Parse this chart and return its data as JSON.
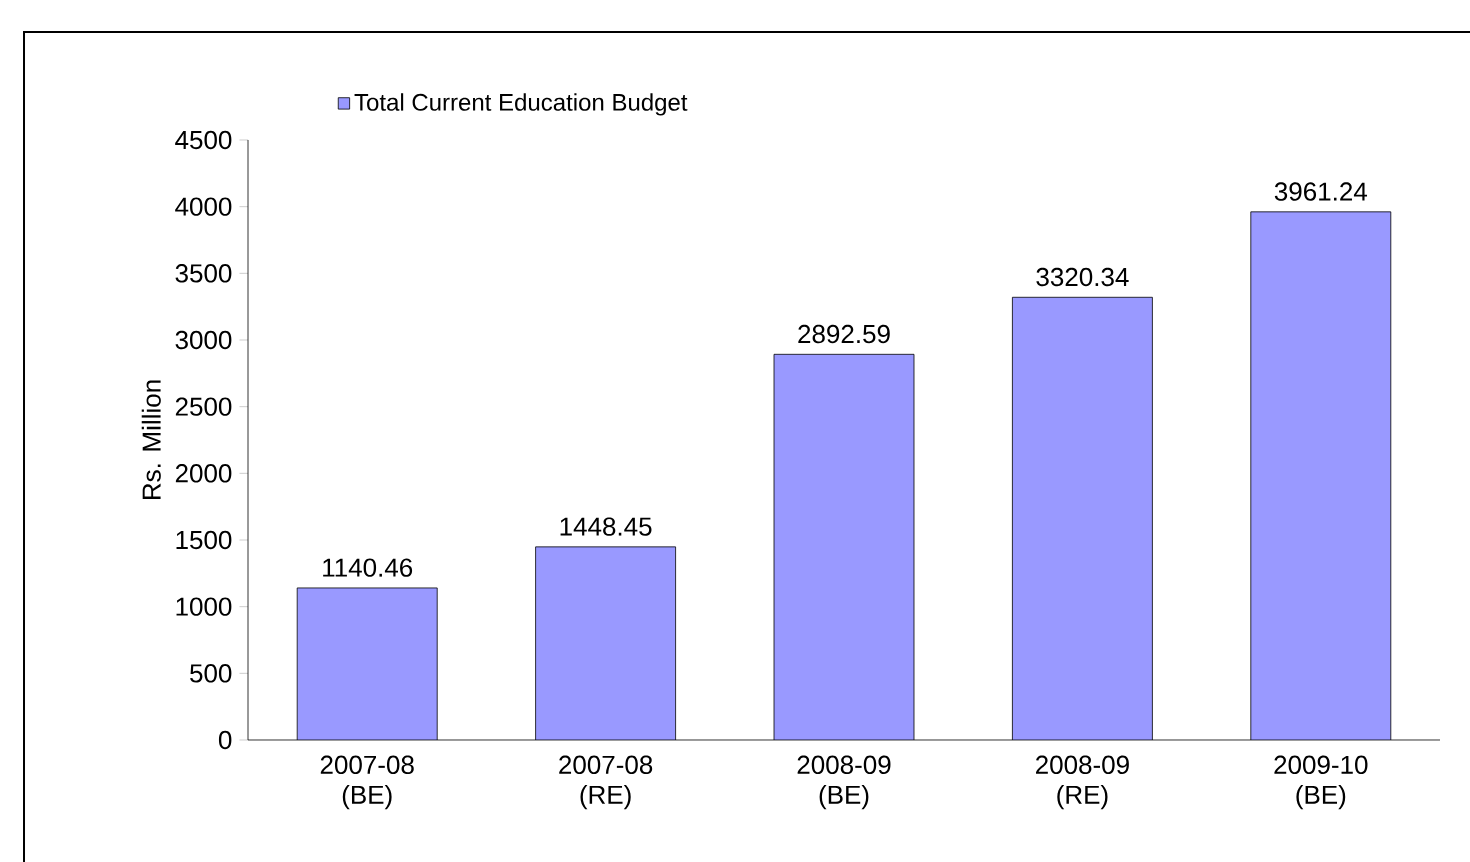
{
  "chart_data": {
    "type": "bar",
    "ylabel": "Rs. Million",
    "categories": [
      "2007-08 (BE)",
      "2007-08 (RE)",
      "2008-09 (BE)",
      "2008-09 (RE)",
      "2009-10 (BE)"
    ],
    "series": [
      {
        "name": "Total Current Education Budget",
        "color": "#9999ff",
        "values": [
          1140.46,
          1448.45,
          2892.59,
          3320.34,
          3961.24
        ]
      }
    ],
    "ylim": [
      0,
      4500
    ],
    "yticks": [
      0,
      500,
      1000,
      1500,
      2000,
      2500,
      3000,
      3500,
      4000,
      4500
    ],
    "data_labels": true,
    "legend": "top left",
    "grid": false
  }
}
